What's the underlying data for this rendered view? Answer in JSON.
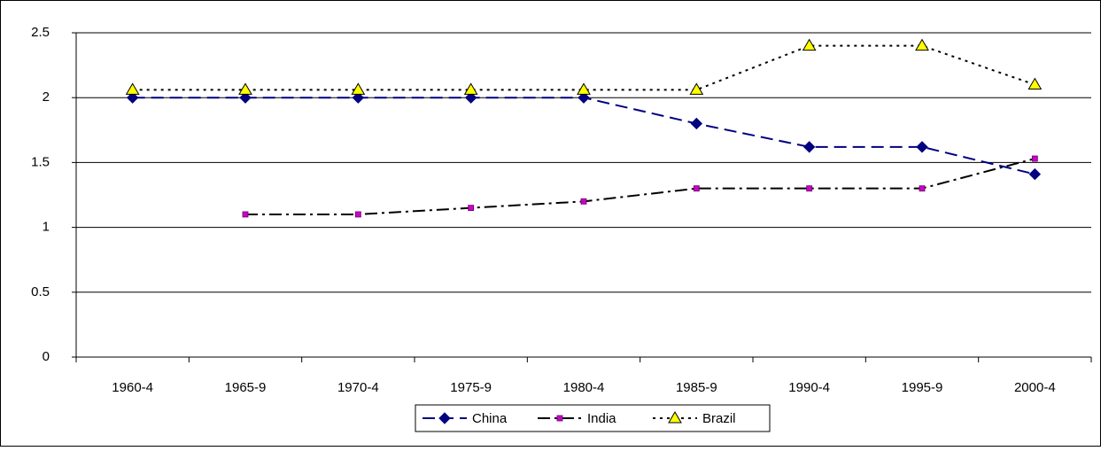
{
  "chart_data": {
    "type": "line",
    "categories": [
      "1960-4",
      "1965-9",
      "1970-4",
      "1975-9",
      "1980-4",
      "1985-9",
      "1990-4",
      "1995-9",
      "2000-4"
    ],
    "series": [
      {
        "name": "China",
        "color": "#000080",
        "values": [
          2,
          2,
          2,
          2,
          2,
          1.8,
          1.62,
          1.62,
          1.41
        ]
      },
      {
        "name": "India",
        "color": "#000000",
        "values": [
          null,
          1.1,
          1.1,
          1.15,
          1.2,
          1.3,
          1.3,
          1.3,
          1.53
        ]
      },
      {
        "name": "Brazil",
        "color": "#000000",
        "values": [
          2.06,
          2.06,
          2.06,
          2.06,
          2.06,
          2.06,
          2.4,
          2.4,
          2.1
        ]
      }
    ],
    "ylim": [
      0,
      2.5
    ],
    "yticks": [
      0,
      0.5,
      1,
      1.5,
      2,
      2.5
    ],
    "grid": true,
    "legend": "bottom"
  }
}
